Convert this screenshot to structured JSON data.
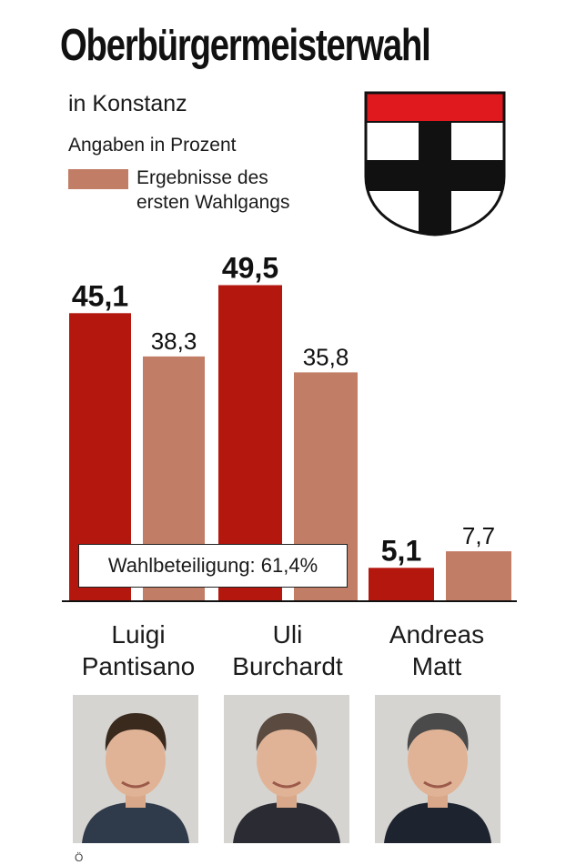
{
  "header": {
    "title": "Oberbürgermeisterwahl",
    "subtitle": "in Konstanz",
    "unit_note": "Angaben in Prozent",
    "legend_line1": "Ergebnisse des",
    "legend_line2": "ersten Wahlgangs"
  },
  "colors": {
    "current": "#b3170e",
    "first_round": "#c17d65",
    "crest_red": "#e0191e",
    "crest_black": "#111111"
  },
  "chart_data": {
    "type": "bar",
    "categories": [
      "Luigi Pantisano",
      "Uli Burchardt",
      "Andreas Matt"
    ],
    "series": [
      {
        "values": [
          45.1,
          49.5,
          5.1
        ],
        "labels": [
          "45,1",
          "49,5",
          "5,1"
        ]
      },
      {
        "name": "Ergebnisse des ersten Wahlgangs",
        "values": [
          38.3,
          35.8,
          7.7
        ],
        "labels": [
          "38,3",
          "35,8",
          "7,7"
        ]
      }
    ],
    "ylim": [
      0,
      55
    ],
    "annotation": "Wahlbeteiligung: 61,4%"
  },
  "candidates": [
    {
      "first": "Luigi",
      "last": "Pantisano",
      "icon": "person-photo-icon"
    },
    {
      "first": "Uli",
      "last": "Burchardt",
      "icon": "person-photo-icon"
    },
    {
      "first": "Andreas",
      "last": "Matt",
      "icon": "person-photo-icon"
    }
  ],
  "footnote": "Ö"
}
